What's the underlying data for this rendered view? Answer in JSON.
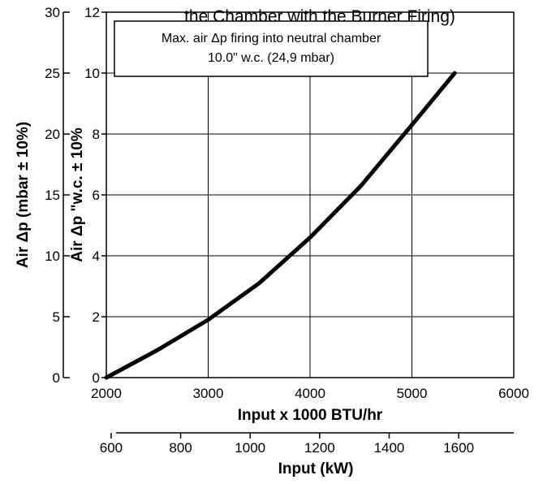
{
  "chart_data": {
    "type": "line",
    "title": "the Chamber with the Burner Firing)",
    "annotation": {
      "line1": "Max. air Δp firing into neutral chamber",
      "line2": "10.0\" w.c. (24,9 mbar)"
    },
    "xlabel": "Input x 1000 BTU/hr",
    "xlim": [
      2000,
      6000
    ],
    "x_ticks": [
      "2000",
      "3000",
      "4000",
      "5000",
      "6000"
    ],
    "secondary_xlabel": "Input (kW)",
    "secondary_x_ticks": [
      "600",
      "800",
      "1000",
      "1200",
      "1400",
      "1600"
    ],
    "ylabel": "Air Δp \"w.c. ± 10%",
    "ylim": [
      0,
      12
    ],
    "y_ticks": [
      "0",
      "2",
      "4",
      "6",
      "8",
      "10",
      "12"
    ],
    "secondary_ylabel": "Air Δp (mbar ± 10%)",
    "secondary_y_ticks": [
      "0",
      "5",
      "10",
      "15",
      "20",
      "25",
      "30"
    ],
    "grid": true,
    "series": [
      {
        "x": [
          2000,
          2500,
          3000,
          3500,
          4000,
          4500,
          5000,
          5420
        ],
        "y": [
          0,
          0.9,
          1.9,
          3.1,
          4.6,
          6.3,
          8.3,
          10.0
        ]
      }
    ]
  }
}
